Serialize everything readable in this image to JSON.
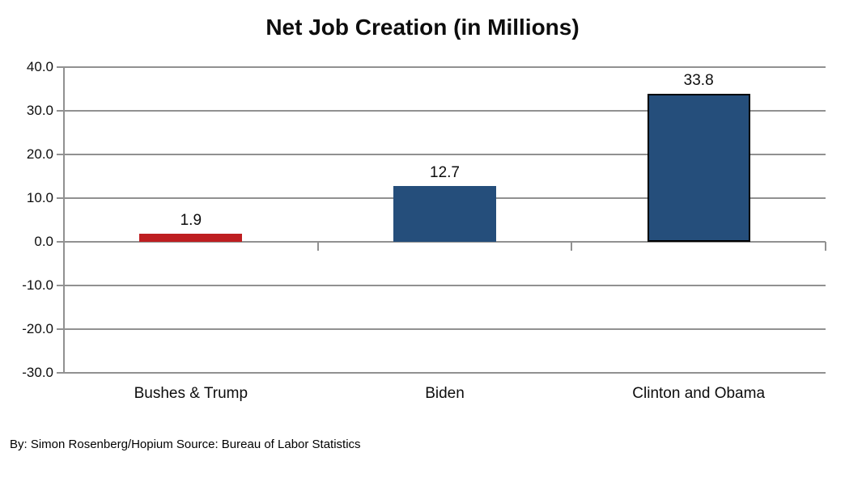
{
  "chart_data": {
    "type": "bar",
    "title": "Net Job Creation (in Millions)",
    "categories": [
      "Bushes & Trump",
      "Biden",
      "Clinton and Obama"
    ],
    "values": [
      1.9,
      12.7,
      33.8
    ],
    "data_labels": [
      "1.9",
      "12.7",
      "33.8"
    ],
    "bar_colors": [
      "#BE1E21",
      "#254E7B",
      "#254E7B"
    ],
    "bar_border_colors": [
      "none",
      "none",
      "#000000"
    ],
    "ylim": [
      -30,
      40
    ],
    "yticks": [
      40,
      30,
      20,
      10,
      0,
      -10,
      -20,
      -30
    ],
    "ytick_labels": [
      "40.0",
      "30.0",
      "20.0",
      "10.0",
      "0.0",
      "-10.0",
      "-20.0",
      "-30.0"
    ],
    "grid": true,
    "legend": false,
    "gridline_color": "#919191",
    "text_color": "#0d0d0d",
    "source_note": "By: Simon Rosenberg/Hopium Source: Bureau of Labor Statistics"
  }
}
